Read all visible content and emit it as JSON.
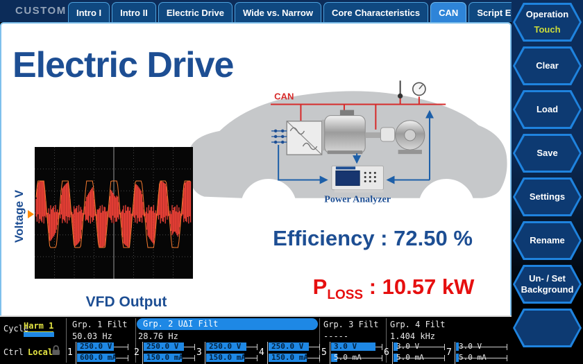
{
  "topbar": {
    "custom_label": "CUSTOM",
    "tabs": [
      {
        "label": "Intro I",
        "active": false
      },
      {
        "label": "Intro II",
        "active": false
      },
      {
        "label": "Electric Drive",
        "active": false
      },
      {
        "label": "Wide vs. Narrow",
        "active": false
      },
      {
        "label": "Core Characteristics",
        "active": false
      },
      {
        "label": "CAN",
        "active": true
      },
      {
        "label": "Script Editor",
        "active": false
      }
    ]
  },
  "sidebar": {
    "buttons": [
      {
        "label": "Operation",
        "sub": "Touch"
      },
      {
        "label": "Clear",
        "sub": ""
      },
      {
        "label": "Load",
        "sub": ""
      },
      {
        "label": "Save",
        "sub": ""
      },
      {
        "label": "Settings",
        "sub": ""
      },
      {
        "label": "Rename",
        "sub": ""
      },
      {
        "label": "Un- / Set Background",
        "sub": ""
      },
      {
        "label": "",
        "sub": ""
      }
    ]
  },
  "main": {
    "title": "Electric Drive",
    "scope": {
      "ylabel": "Voltage V",
      "caption": "VFD Output"
    },
    "diagram": {
      "bus_label": "CAN",
      "analyzer_label": "Power Analyzer"
    },
    "efficiency": {
      "label": "Efficiency",
      "sep": " : ",
      "value": "72.50 %"
    },
    "ploss": {
      "base": "P",
      "sub": "LOSS",
      "sep": " : ",
      "value": "10.57 kW"
    }
  },
  "statusbar": {
    "cycle": {
      "label": "Cycle",
      "value": "Harm 1"
    },
    "ctrl": {
      "label": "Ctrl",
      "value": "Local"
    },
    "groups": [
      {
        "name": "Grp. 1 Filt",
        "freq": "50.03  Hz",
        "active": false
      },
      {
        "name": "Grp. 2 UΔI Filt",
        "freq": "28.76  Hz",
        "active": true
      },
      {
        "name": "Grp. 3 Filt",
        "freq": "-----",
        "active": false
      },
      {
        "name": "Grp. 4 Filt",
        "freq": "1.404 kHz",
        "active": false
      }
    ],
    "channels": [
      {
        "n": "1",
        "v": "250.0 V",
        "v_fill": 0.72,
        "v_on": true,
        "i": "600.0 mA",
        "i_fill": 0.74,
        "i_on": true
      },
      {
        "n": "2",
        "v": "250.0 V",
        "v_fill": 0.78,
        "v_on": true,
        "i": "150.0 mA",
        "i_fill": 0.74,
        "i_on": true
      },
      {
        "n": "3",
        "v": "250.0 V",
        "v_fill": 0.78,
        "v_on": true,
        "i": "150.0 mA",
        "i_fill": 0.74,
        "i_on": true
      },
      {
        "n": "4",
        "v": "250.0 V",
        "v_fill": 0.78,
        "v_on": true,
        "i": "150.0 mA",
        "i_fill": 0.74,
        "i_on": true
      },
      {
        "n": "5",
        "v": "3.0 V",
        "v_fill": 0.86,
        "v_on": true,
        "i": "5.0 mA",
        "i_fill": 0.12,
        "i_on": false
      },
      {
        "n": "6",
        "v": "3.0 V",
        "v_fill": 0.08,
        "v_on": false,
        "i": "5.0 mA",
        "i_fill": 0.08,
        "i_on": false
      },
      {
        "n": "7",
        "v": "3.0 V",
        "v_fill": 0.06,
        "v_on": false,
        "i": "5.0 mA",
        "i_fill": 0.06,
        "i_on": false
      }
    ]
  },
  "colors": {
    "accent_blue": "#1d4e93",
    "bar_blue": "#1e88e5",
    "alert_red": "#e60f0f",
    "highlight_yellow": "#e3e342",
    "can_bus_red": "#d62b2b"
  }
}
